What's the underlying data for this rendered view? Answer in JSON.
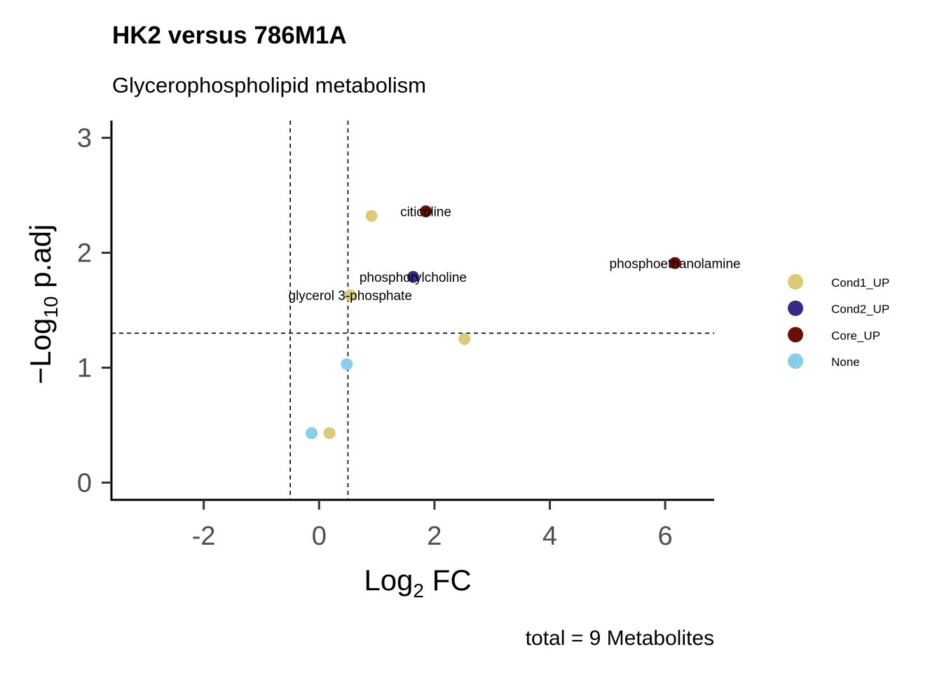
{
  "chart_data": {
    "type": "scatter",
    "title": "HK2 versus 786M1A",
    "subtitle": "Glycerophospholipid metabolism",
    "xlabel": {
      "base": "Log",
      "sub": "2",
      "rest": " FC"
    },
    "ylabel": {
      "prefix": "−Log",
      "sub": "10",
      "rest": " p.adj"
    },
    "xlim": [
      -3.6,
      6.85
    ],
    "ylim": [
      -0.15,
      3.15
    ],
    "xticks": [
      -2,
      0,
      2,
      4,
      6
    ],
    "yticks": [
      0,
      1,
      2,
      3
    ],
    "xtick_labels": [
      "-2",
      "0",
      "2",
      "4",
      "6"
    ],
    "ytick_labels": [
      "0",
      "1",
      "2",
      "3"
    ],
    "thresholds": {
      "x": [
        -0.5,
        0.5
      ],
      "y": 1.3
    },
    "grid": false,
    "legend_position": "right",
    "categories": [
      {
        "name": "Cond1_UP",
        "color": "#DBCB78"
      },
      {
        "name": "Cond2_UP",
        "color": "#352A87"
      },
      {
        "name": "Core_UP",
        "color": "#6B0F04"
      },
      {
        "name": "None",
        "color": "#87CEEB"
      }
    ],
    "points": [
      {
        "x": 0.91,
        "y": 2.32,
        "group": "Cond1_UP",
        "label": ""
      },
      {
        "x": 1.85,
        "y": 2.36,
        "group": "Core_UP",
        "label": "citicoline"
      },
      {
        "x": 6.17,
        "y": 1.91,
        "group": "Core_UP",
        "label": "phosphoethanolamine"
      },
      {
        "x": 1.63,
        "y": 1.79,
        "group": "Cond2_UP",
        "label": "phosphorylcholine"
      },
      {
        "x": 0.54,
        "y": 1.63,
        "group": "Cond1_UP",
        "label": "glycerol 3-phosphate"
      },
      {
        "x": 2.52,
        "y": 1.25,
        "group": "Cond1_UP",
        "label": ""
      },
      {
        "x": 0.48,
        "y": 1.03,
        "group": "None",
        "label": ""
      },
      {
        "x": -0.13,
        "y": 0.43,
        "group": "None",
        "label": ""
      },
      {
        "x": 0.18,
        "y": 0.43,
        "group": "Cond1_UP",
        "label": ""
      }
    ],
    "caption": "total = 9 Metabolites"
  }
}
